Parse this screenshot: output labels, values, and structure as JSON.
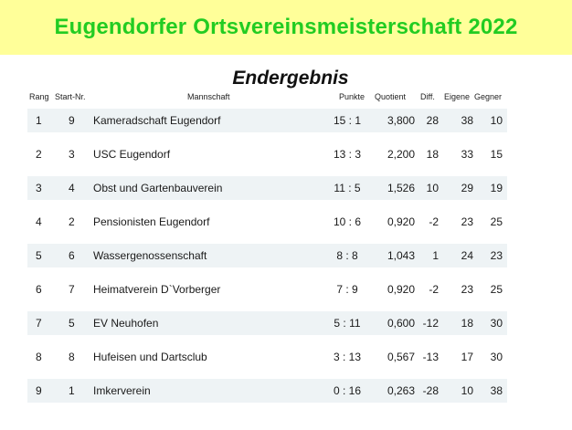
{
  "banner": {
    "title": "Eugendorfer Ortsvereinsmeisterschaft 2022"
  },
  "subtitle": "Endergebnis",
  "headers": {
    "rang": "Rang",
    "start": "Start-Nr.",
    "team": "Mannschaft",
    "punkte": "Punkte",
    "quotient": "Quotient",
    "diff": "Diff.",
    "eigene": "Eigene",
    "gegner": "Gegner"
  },
  "rows": [
    {
      "rang": "1",
      "start": "9",
      "team": "Kameradschaft Eugendorf",
      "punkte": "15 : 1",
      "quotient": "3,800",
      "diff": "28",
      "eigene": "38",
      "gegner": "10"
    },
    {
      "rang": "2",
      "start": "3",
      "team": "USC Eugendorf",
      "punkte": "13 : 3",
      "quotient": "2,200",
      "diff": "18",
      "eigene": "33",
      "gegner": "15"
    },
    {
      "rang": "3",
      "start": "4",
      "team": "Obst und Gartenbauverein",
      "punkte": "11 : 5",
      "quotient": "1,526",
      "diff": "10",
      "eigene": "29",
      "gegner": "19"
    },
    {
      "rang": "4",
      "start": "2",
      "team": "Pensionisten Eugendorf",
      "punkte": "10 : 6",
      "quotient": "0,920",
      "diff": "-2",
      "eigene": "23",
      "gegner": "25"
    },
    {
      "rang": "5",
      "start": "6",
      "team": "Wassergenossenschaft",
      "punkte": "8 : 8",
      "quotient": "1,043",
      "diff": "1",
      "eigene": "24",
      "gegner": "23"
    },
    {
      "rang": "6",
      "start": "7",
      "team": "Heimatverein D`Vorberger",
      "punkte": "7 : 9",
      "quotient": "0,920",
      "diff": "-2",
      "eigene": "23",
      "gegner": "25"
    },
    {
      "rang": "7",
      "start": "5",
      "team": "EV Neuhofen",
      "punkte": "5 : 11",
      "quotient": "0,600",
      "diff": "-12",
      "eigene": "18",
      "gegner": "30"
    },
    {
      "rang": "8",
      "start": "8",
      "team": "Hufeisen und Dartsclub",
      "punkte": "3 : 13",
      "quotient": "0,567",
      "diff": "-13",
      "eigene": "17",
      "gegner": "30"
    },
    {
      "rang": "9",
      "start": "1",
      "team": "Imkerverein",
      "punkte": "0 : 16",
      "quotient": "0,263",
      "diff": "-28",
      "eigene": "10",
      "gegner": "38"
    }
  ],
  "colors": {
    "banner_bg": "#ffff99",
    "banner_text": "#22cc22",
    "row_shade": "#eef3f5"
  }
}
